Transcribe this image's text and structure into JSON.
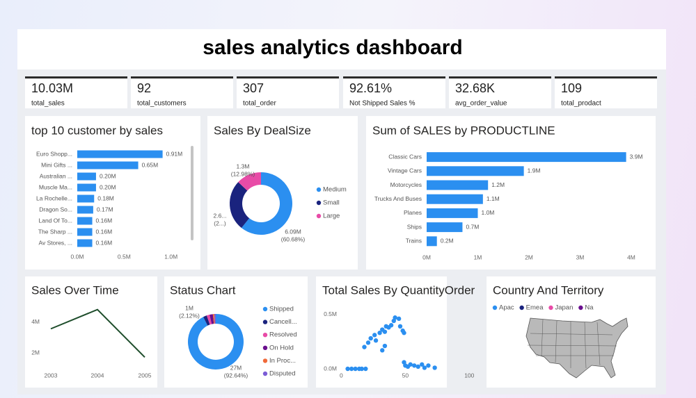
{
  "title": "sales analytics dashboard",
  "kpis": [
    {
      "value": "10.03M",
      "label": "total_sales"
    },
    {
      "value": "92",
      "label": "total_customers"
    },
    {
      "value": "307",
      "label": "total_order"
    },
    {
      "value": "92.61%",
      "label": "Not Shipped Sales %"
    },
    {
      "value": "32.68K",
      "label": "avg_order_value"
    },
    {
      "value": "109",
      "label": "total_prodact"
    }
  ],
  "chart_data": [
    {
      "type": "barh",
      "title": "top 10 customer by sales",
      "categories": [
        "Euro Shopp...",
        "Mini Gifts ...",
        "Australian ...",
        "Muscle Ma...",
        "La Rochelle...",
        "Dragon So...",
        "Land Of To...",
        "The Sharp ...",
        "Av Stores, ..."
      ],
      "values": [
        0.91,
        0.65,
        0.2,
        0.2,
        0.18,
        0.17,
        0.16,
        0.16,
        0.16
      ],
      "value_labels": [
        "0.91M",
        "0.65M",
        "0.20M",
        "0.20M",
        "0.18M",
        "0.17M",
        "0.16M",
        "0.16M",
        "0.16M"
      ],
      "color": "#2b8ff0",
      "xlim": [
        0,
        1.18
      ],
      "xticks": [
        {
          "value": 0,
          "label": "0.0M"
        },
        {
          "value": 0.5,
          "label": "0.5M"
        },
        {
          "value": 1.0,
          "label": "1.0M"
        }
      ]
    },
    {
      "type": "donut",
      "title": "Sales By DealSize",
      "categories": [
        "Medium",
        "Small",
        "Large"
      ],
      "values": [
        6.09,
        2.64,
        1.3
      ],
      "value_labels": [
        "6.09M",
        "2.6...",
        "1.3M"
      ],
      "percent_labels": [
        "(60.68%)",
        "(2...)",
        "(12.98%)"
      ],
      "colors": [
        "#2b8ff0",
        "#1a237e",
        "#e84ba7"
      ]
    },
    {
      "type": "barh",
      "title": "Sum of SALES by PRODUCTLINE",
      "categories": [
        "Classic Cars",
        "Vintage Cars",
        "Motorcycles",
        "Trucks And Buses",
        "Planes",
        "Ships",
        "Trains"
      ],
      "values": [
        3.9,
        1.9,
        1.2,
        1.1,
        1.0,
        0.7,
        0.2
      ],
      "value_labels": [
        "3.9M",
        "1.9M",
        "1.2M",
        "1.1M",
        "1.0M",
        "0.7M",
        "0.2M"
      ],
      "color": "#2b8ff0",
      "xlim": [
        0,
        4.15
      ],
      "xticks": [
        {
          "value": 0,
          "label": "0M"
        },
        {
          "value": 1,
          "label": "1M"
        },
        {
          "value": 2,
          "label": "2M"
        },
        {
          "value": 3,
          "label": "3M"
        },
        {
          "value": 4,
          "label": "4M"
        }
      ]
    },
    {
      "type": "line",
      "title": "Sales Over Time",
      "categories": [
        "2003",
        "2004",
        "2005"
      ],
      "values": [
        3.56,
        4.8,
        1.73
      ],
      "color": "#1e4d2b",
      "ylim": [
        1.25,
        5.5
      ],
      "yticks": [
        {
          "value": 2,
          "label": "2M"
        },
        {
          "value": 4,
          "label": "4M"
        }
      ]
    },
    {
      "type": "donut",
      "title": "Status Chart",
      "categories": [
        "Shipped",
        "Cancell...",
        "Resolved",
        "On Hold",
        "In Proc...",
        "Disputed"
      ],
      "values": [
        27,
        0.62,
        0.5,
        0.55,
        0.25,
        0.24
      ],
      "value_labels": [
        "27M",
        "1M",
        null,
        null,
        null,
        null
      ],
      "percent_labels": [
        "(92.64%)",
        "(2.12%)",
        null,
        null,
        null,
        null
      ],
      "colors": [
        "#2b8ff0",
        "#1a237e",
        "#e84ba7",
        "#6a0f8e",
        "#f06a3a",
        "#7b5cd6"
      ]
    },
    {
      "type": "scatter",
      "title": "Total Sales By QuantityOrder",
      "x": [
        5,
        8,
        11,
        14,
        16,
        19,
        18,
        21,
        23,
        26,
        27,
        30,
        32,
        34,
        35,
        37,
        39,
        41,
        42,
        45,
        46,
        48,
        49,
        34,
        32,
        50,
        52,
        54,
        57,
        60,
        63,
        65,
        68,
        73,
        49
      ],
      "values": [
        0,
        0,
        0,
        0,
        0,
        0,
        0.2,
        0.24,
        0.28,
        0.31,
        0.26,
        0.33,
        0.36,
        0.34,
        0.39,
        0.38,
        0.4,
        0.44,
        0.47,
        0.46,
        0.39,
        0.35,
        0.33,
        0.21,
        0.17,
        0.03,
        0.02,
        0.04,
        0.03,
        0.02,
        0.04,
        0.01,
        0.03,
        0.01,
        0.06
      ],
      "color": "#2b8ff0",
      "xlim": [
        -10,
        108
      ],
      "ylim": [
        0,
        0.58
      ],
      "xticks": [
        0,
        50,
        100
      ],
      "yticks": [
        {
          "value": 0,
          "label": "0.0M"
        },
        {
          "value": 0.5,
          "label": "0.5M"
        }
      ]
    },
    {
      "type": "map",
      "title": "Country And Territory",
      "series": [
        {
          "name": "Apac",
          "color": "#2b8ff0"
        },
        {
          "name": "Emea",
          "color": "#1a237e"
        },
        {
          "name": "Japan",
          "color": "#e84ba7"
        },
        {
          "name": "Na",
          "color": "#6a0f8e"
        }
      ]
    }
  ]
}
